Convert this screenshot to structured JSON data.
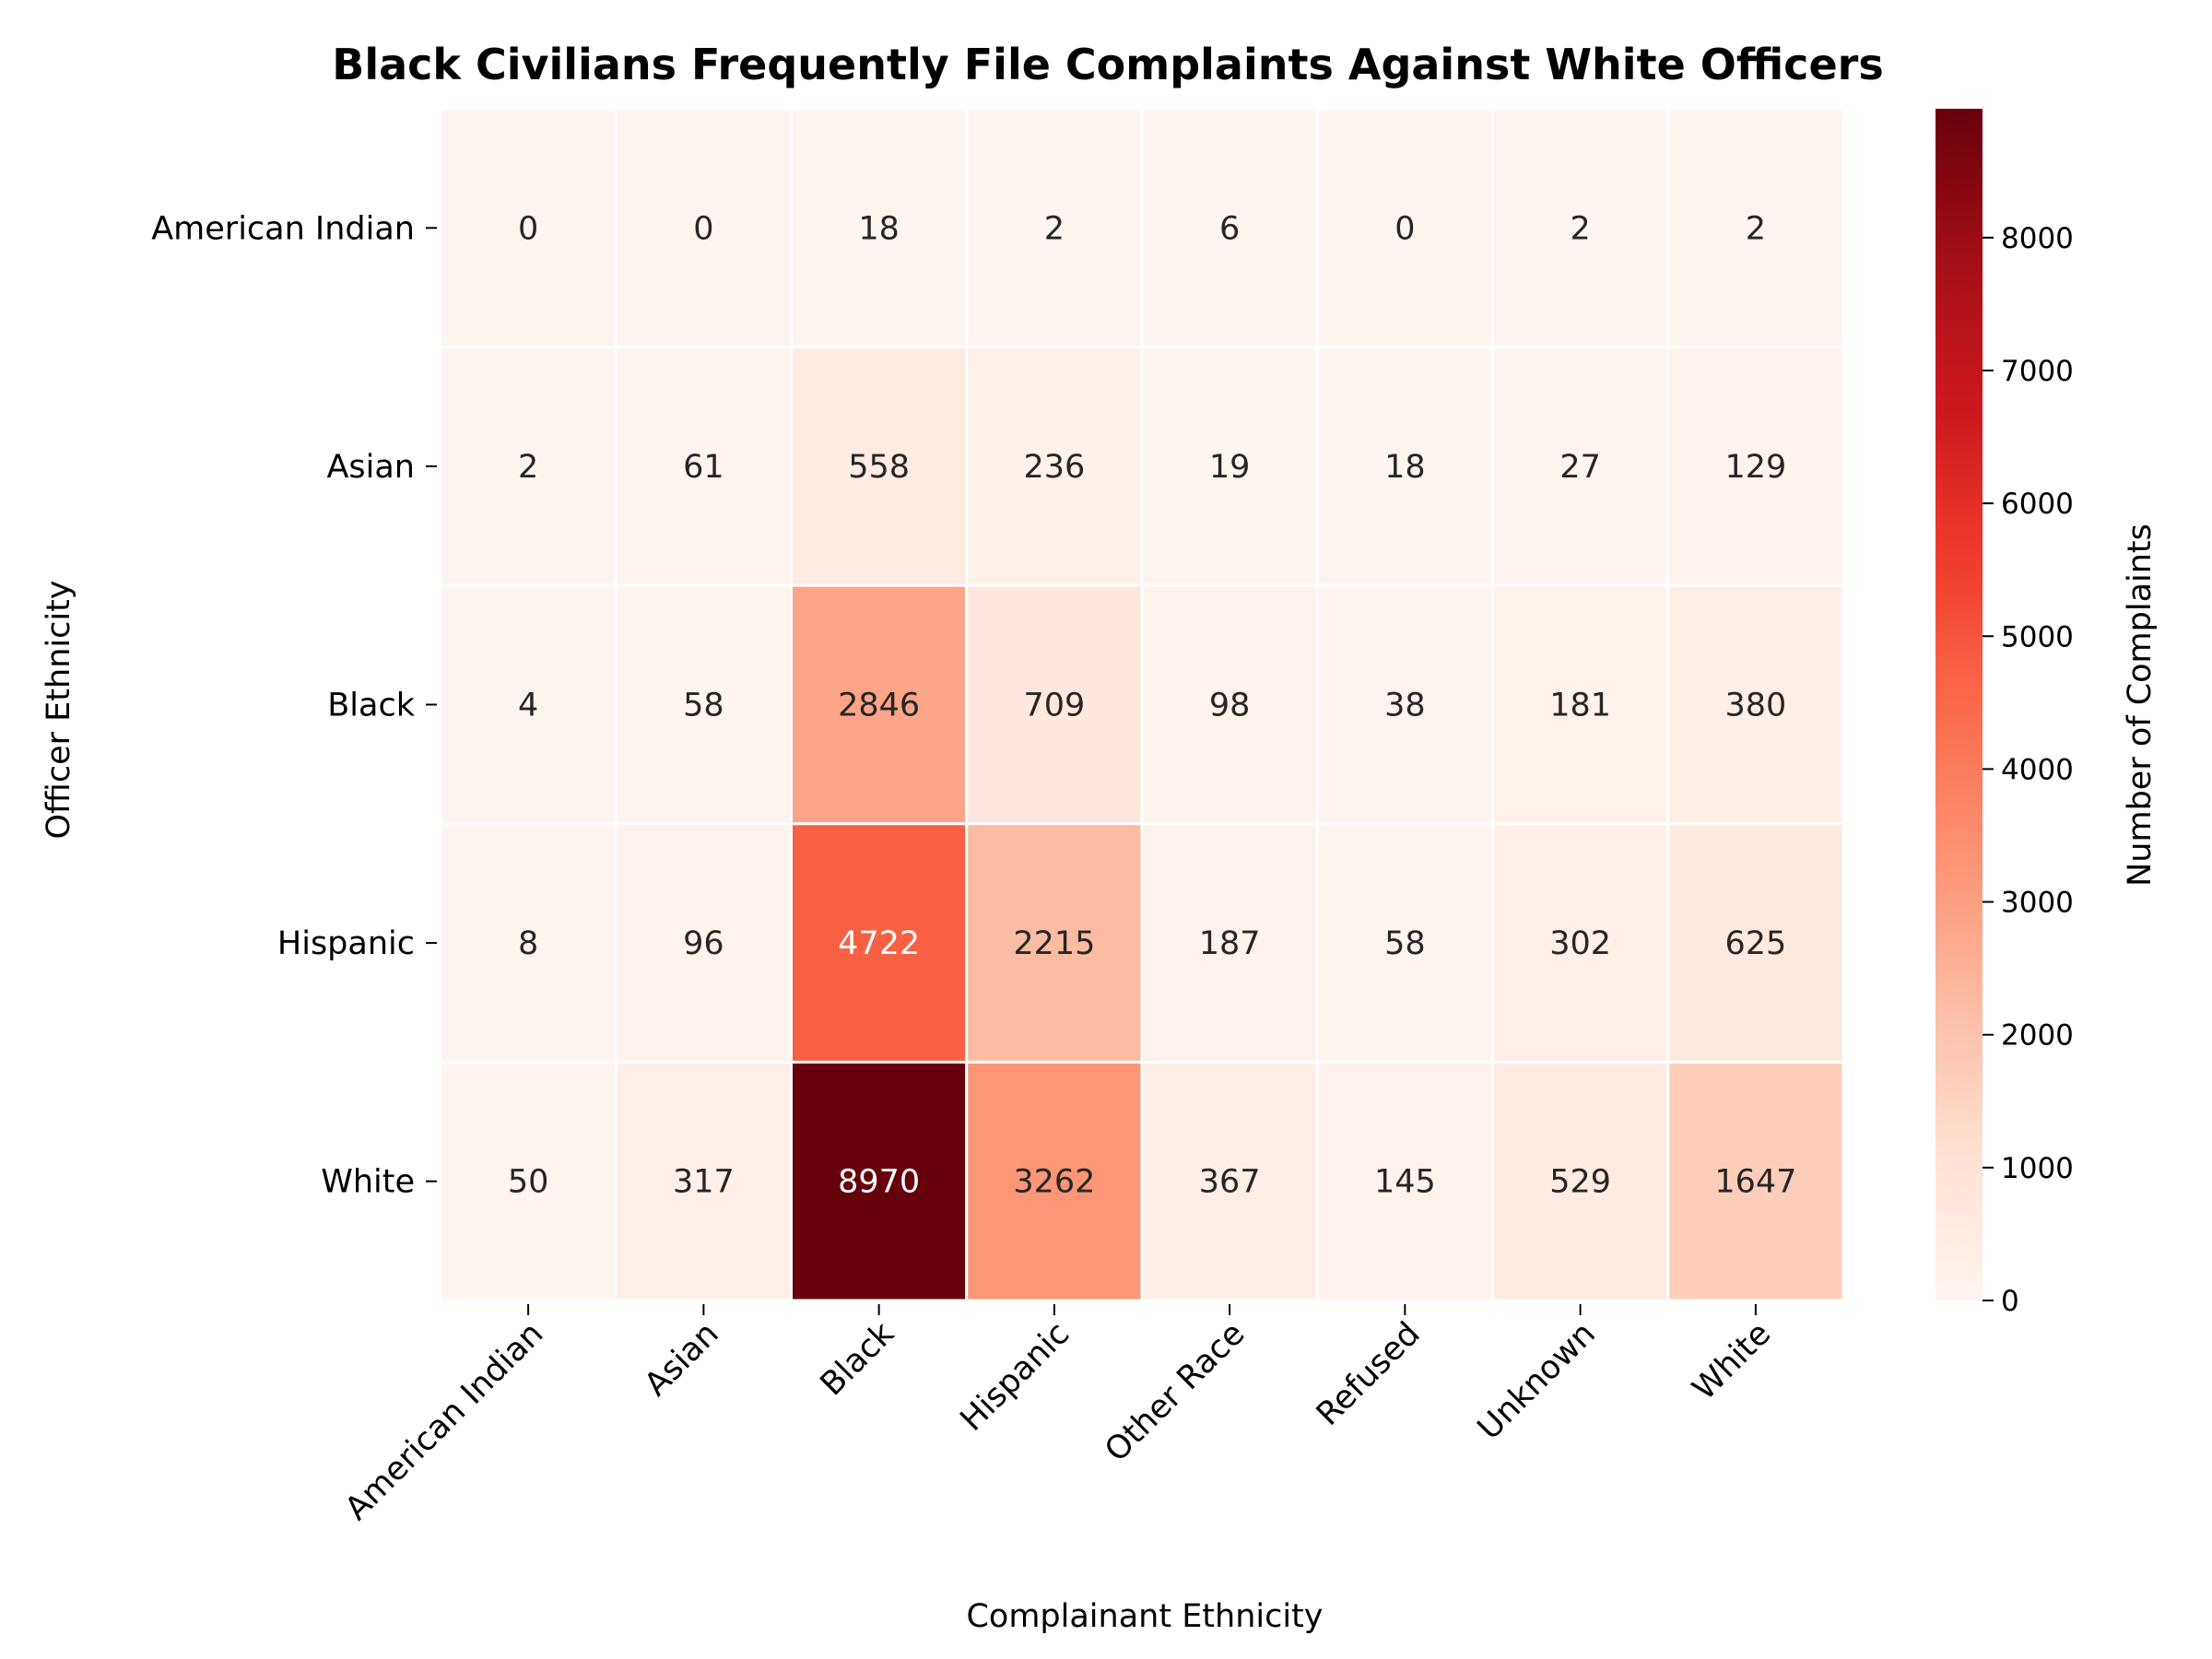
{
  "chart_data": {
    "type": "heatmap",
    "title": "Black Civilians Frequently File Complaints Against White Officers",
    "xlabel": "Complainant Ethnicity",
    "ylabel": "Officer Ethnicity",
    "x_categories": [
      "American Indian",
      "Asian",
      "Black",
      "Hispanic",
      "Other Race",
      "Refused",
      "Unknown",
      "White"
    ],
    "y_categories": [
      "American Indian",
      "Asian",
      "Black",
      "Hispanic",
      "White"
    ],
    "values": [
      [
        0,
        0,
        18,
        2,
        6,
        0,
        2,
        2
      ],
      [
        2,
        61,
        558,
        236,
        19,
        18,
        27,
        129
      ],
      [
        4,
        58,
        2846,
        709,
        98,
        38,
        181,
        380
      ],
      [
        8,
        96,
        4722,
        2215,
        187,
        58,
        302,
        625
      ],
      [
        50,
        317,
        8970,
        3262,
        367,
        145,
        529,
        1647
      ]
    ],
    "colorbar": {
      "label": "Number of Complaints",
      "range": [
        0,
        8970
      ],
      "ticks": [
        0,
        1000,
        2000,
        3000,
        4000,
        5000,
        6000,
        7000,
        8000
      ],
      "colormap": "Reds"
    },
    "grid": false
  }
}
